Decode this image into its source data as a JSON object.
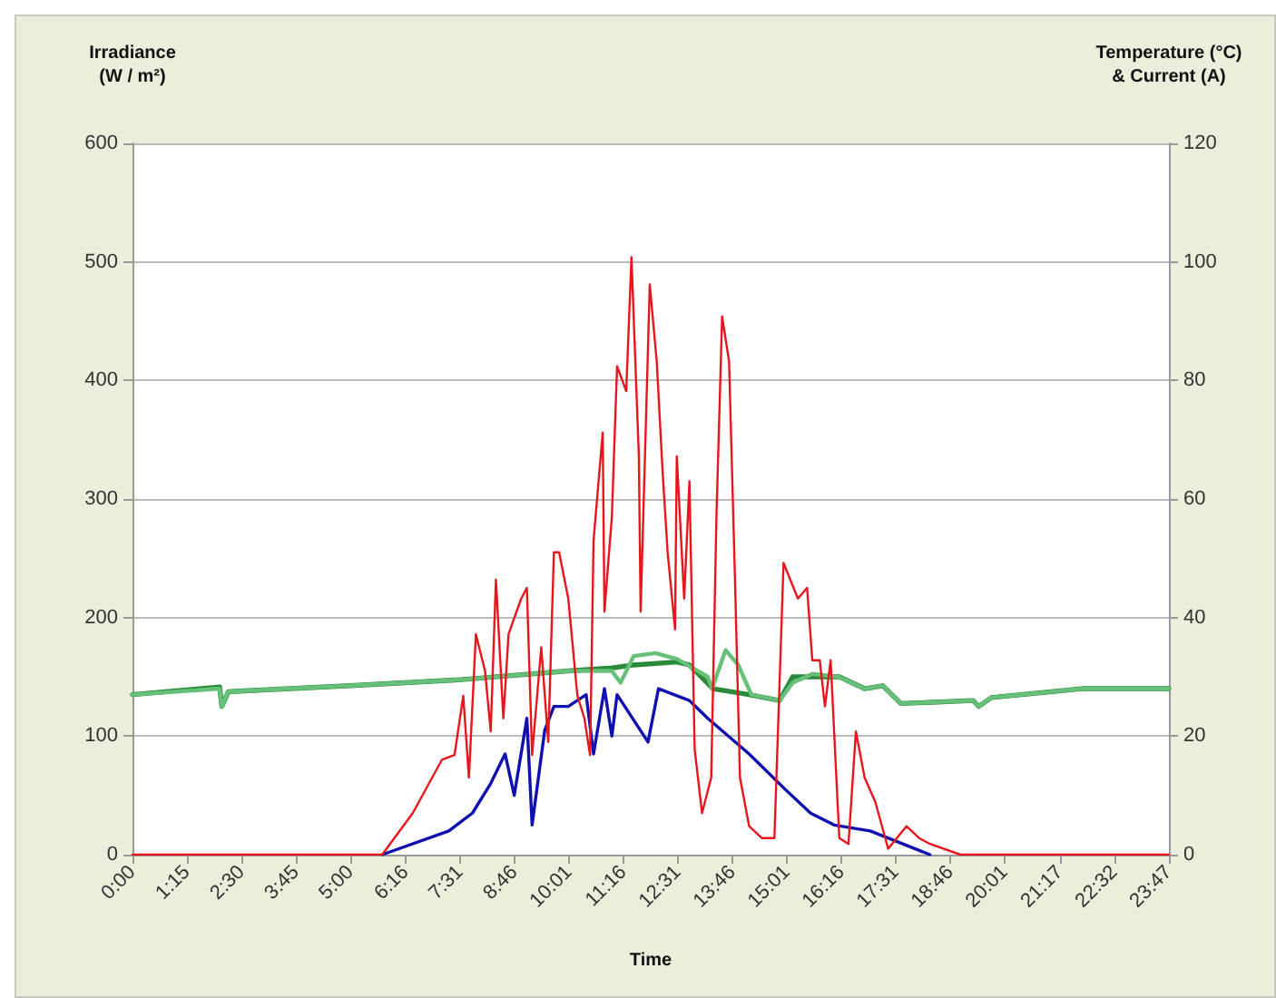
{
  "chart_data": {
    "type": "line",
    "xlabel": "Time",
    "ylabel": "Irradiance\n(W / m²)",
    "y2label": "Temperature (°C)\n& Current (A)",
    "grid": "y",
    "marker": "none",
    "line_style": "solid",
    "xlim": [
      0,
      23.783
    ],
    "xticks": [
      {
        "value": 0,
        "label": "0:00"
      },
      {
        "value": 1.25,
        "label": "1:15"
      },
      {
        "value": 2.5,
        "label": "2:30"
      },
      {
        "value": 3.75,
        "label": "3:45"
      },
      {
        "value": 5,
        "label": "5:00"
      },
      {
        "value": 6.267,
        "label": "6:16"
      },
      {
        "value": 7.517,
        "label": "7:31"
      },
      {
        "value": 8.767,
        "label": "8:46"
      },
      {
        "value": 10.017,
        "label": "10:01"
      },
      {
        "value": 11.267,
        "label": "11:16"
      },
      {
        "value": 12.517,
        "label": "12:31"
      },
      {
        "value": 13.767,
        "label": "13:46"
      },
      {
        "value": 15.017,
        "label": "15:01"
      },
      {
        "value": 16.267,
        "label": "16:16"
      },
      {
        "value": 17.517,
        "label": "17:31"
      },
      {
        "value": 18.767,
        "label": "18:46"
      },
      {
        "value": 20.017,
        "label": "20:01"
      },
      {
        "value": 21.283,
        "label": "21:17"
      },
      {
        "value": 22.533,
        "label": "22:32"
      },
      {
        "value": 23.783,
        "label": "23:47"
      }
    ],
    "ylim": [
      0,
      600
    ],
    "yticks": [
      0,
      100,
      200,
      300,
      400,
      500,
      600
    ],
    "y2lim": [
      0,
      120
    ],
    "y2ticks": [
      0,
      20,
      40,
      60,
      80,
      100,
      120
    ],
    "series": [
      {
        "color": "#2a8a3a",
        "axis": "y2",
        "x": [
          0,
          2.0,
          2.05,
          2.2,
          5,
          7.5,
          10,
          11,
          11.5,
          12.5,
          12.78,
          13.32,
          14.15,
          14.85,
          15.15,
          16.22,
          16.8,
          17.22,
          17.63,
          19.29,
          19.42,
          19.71,
          21.78,
          23.78
        ],
        "values": [
          27,
          28.3,
          25,
          27.5,
          28.5,
          29.5,
          31,
          31.5,
          32,
          32.5,
          32,
          28,
          27,
          26,
          30,
          30,
          28,
          28.5,
          25.5,
          26,
          25,
          26.5,
          28,
          28
        ]
      },
      {
        "color": "#66c07a",
        "axis": "y2",
        "x": [
          0,
          2.0,
          2.05,
          2.2,
          5,
          7.5,
          10,
          11,
          11.2,
          11.5,
          12,
          12.5,
          13.2,
          13.3,
          13.61,
          13.9,
          14.2,
          14.85,
          15.15,
          15.6,
          16.2,
          16.8,
          17.22,
          17.63,
          19.29,
          19.42,
          19.71,
          21.78,
          23.78
        ],
        "values": [
          27,
          28,
          25,
          27.5,
          28.5,
          29.5,
          31,
          31,
          29,
          33.5,
          34,
          33,
          30,
          28,
          34.5,
          32,
          27,
          26,
          29,
          30.5,
          30,
          28,
          28.5,
          25.5,
          26,
          25,
          26.5,
          28,
          28
        ]
      },
      {
        "color": "#1010b0",
        "axis": "y2",
        "x": [
          5.73,
          7.26,
          7.8,
          8.22,
          8.55,
          8.76,
          9.05,
          9.17,
          9.46,
          9.67,
          10.0,
          10.41,
          10.58,
          10.83,
          11.0,
          11.12,
          11.83,
          12.07,
          12.78,
          13.2,
          14.15,
          14.98,
          15.56,
          16.1,
          16.93,
          18.3
        ],
        "values": [
          0,
          4,
          7,
          12,
          17,
          10,
          23,
          5,
          21,
          25,
          25,
          27,
          17,
          28,
          20,
          27,
          19,
          28,
          26,
          23,
          17,
          11,
          7,
          5,
          4,
          0
        ]
      },
      {
        "color": "#e8161c",
        "axis": "y",
        "x": [
          0,
          5.73,
          6.43,
          7.1,
          7.39,
          7.59,
          7.72,
          7.88,
          8.09,
          8.22,
          8.34,
          8.51,
          8.63,
          8.92,
          9.05,
          9.17,
          9.38,
          9.54,
          9.67,
          9.79,
          10.0,
          10.21,
          10.37,
          10.5,
          10.58,
          10.79,
          10.83,
          11.0,
          11.12,
          11.33,
          11.45,
          11.62,
          11.66,
          11.87,
          12.03,
          12.16,
          12.28,
          12.45,
          12.49,
          12.66,
          12.78,
          12.9,
          13.07,
          13.28,
          13.4,
          13.53,
          13.69,
          13.82,
          13.94,
          14.15,
          14.44,
          14.73,
          14.94,
          15.27,
          15.48,
          15.6,
          15.77,
          15.89,
          16.02,
          16.22,
          16.43,
          16.6,
          16.8,
          17.05,
          17.34,
          17.76,
          18.05,
          18.3,
          19.0,
          23.78
        ],
        "values": [
          0,
          0,
          35,
          80,
          84,
          134,
          65,
          186,
          155,
          104,
          232,
          115,
          186,
          216,
          225,
          84,
          175,
          95,
          255,
          255,
          216,
          134,
          115,
          84,
          265,
          356,
          205,
          285,
          412,
          391,
          504,
          336,
          205,
          481,
          416,
          326,
          255,
          190,
          336,
          216,
          315,
          89,
          35,
          65,
          285,
          454,
          416,
          240,
          65,
          24,
          14,
          14,
          246,
          216,
          225,
          164,
          164,
          125,
          164,
          14,
          9,
          104,
          65,
          44,
          5,
          24,
          14,
          9,
          0,
          0
        ]
      }
    ]
  }
}
